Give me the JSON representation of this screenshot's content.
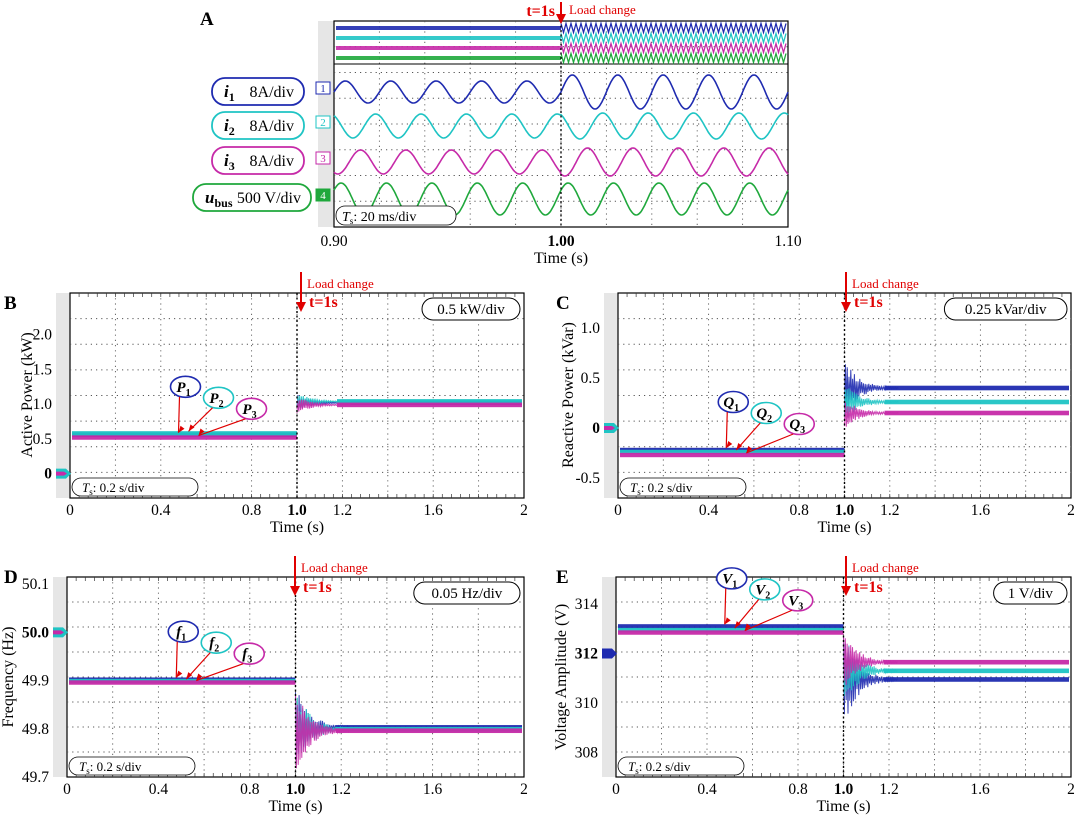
{
  "colors": {
    "ch1": "#1f2bb0",
    "ch2": "#1fc4c4",
    "ch3": "#c62aa8",
    "ch4": "#1fa83c",
    "grid": "#555555",
    "event": "#e00000",
    "frame_bg": "#e6e6e6"
  },
  "chart_data": [
    {
      "id": "A",
      "type": "line",
      "panel_label": "A",
      "xlabel": "Time (s)",
      "x_ticks": [
        {
          "label": "0.90",
          "bold": false
        },
        {
          "label": "1.00",
          "bold": true
        },
        {
          "label": "1.10",
          "bold": false
        }
      ],
      "xlim": [
        0.9,
        1.1
      ],
      "scale_box": {
        "T": "T",
        "sub": "s",
        "rest": ": 20 ms/div"
      },
      "event": {
        "time": 1.0,
        "t_label": "t=1s",
        "label": "Load change"
      },
      "channel_markers": [
        "1",
        "2",
        "3",
        "4"
      ],
      "series": [
        {
          "name": "i1",
          "sym": "i",
          "sub": "1",
          "scale": "8A/div",
          "color_key": "ch1"
        },
        {
          "name": "i2",
          "sym": "i",
          "sub": "2",
          "scale": "8A/div",
          "color_key": "ch2"
        },
        {
          "name": "i3",
          "sym": "i",
          "sub": "3",
          "scale": "8A/div",
          "color_key": "ch3"
        },
        {
          "name": "ubus",
          "sym": "u",
          "sub": "bus",
          "scale": "500 V/div",
          "color_key": "ch4"
        }
      ]
    },
    {
      "id": "B",
      "type": "line",
      "panel_label": "B",
      "xlabel": "Time (s)",
      "ylabel": "Active Power  (kW)",
      "xlim": [
        0,
        2
      ],
      "ylim": [
        -0.35,
        2.6
      ],
      "x_ticks": [
        {
          "label": "0",
          "value": 0,
          "bold": false
        },
        {
          "label": "0.4",
          "value": 0.4,
          "bold": false
        },
        {
          "label": "0.8",
          "value": 0.8,
          "bold": false
        },
        {
          "label": "1.0",
          "value": 1.0,
          "bold": true
        },
        {
          "label": "1.2",
          "value": 1.2,
          "bold": false
        },
        {
          "label": "1.6",
          "value": 1.6,
          "bold": false
        },
        {
          "label": "2",
          "value": 2,
          "bold": false
        }
      ],
      "y_ticks": [
        {
          "label": "0",
          "value": 0
        },
        {
          "label": "0.5",
          "value": 0.5
        },
        {
          "label": "1.0",
          "value": 1.0
        },
        {
          "label": "1.5",
          "value": 1.5
        },
        {
          "label": "2.0",
          "value": 2.0
        }
      ],
      "bold_y_label": "0",
      "scale_box": "0.5 kW/div",
      "time_box": {
        "T": "T",
        "sub": "s",
        "rest": ": 0.2 s/div"
      },
      "event": {
        "time": 1.0,
        "t_label": "t=1s",
        "label": "Load change"
      },
      "series": [
        {
          "name": "P1",
          "sym": "P",
          "sub": "1",
          "color_key": "ch1",
          "before": 0.56,
          "after": 1.02
        },
        {
          "name": "P2",
          "sym": "P",
          "sub": "2",
          "color_key": "ch2",
          "before": 0.58,
          "after": 1.04
        },
        {
          "name": "P3",
          "sym": "P",
          "sub": "3",
          "color_key": "ch3",
          "before": 0.52,
          "after": 0.99
        }
      ]
    },
    {
      "id": "C",
      "type": "line",
      "panel_label": "C",
      "xlabel": "Time (s)",
      "ylabel": "Reactive Power  (kVar)",
      "xlim": [
        0,
        2
      ],
      "ylim": [
        -0.7,
        1.35
      ],
      "x_ticks": [
        {
          "label": "0",
          "value": 0,
          "bold": false
        },
        {
          "label": "0.4",
          "value": 0.4,
          "bold": false
        },
        {
          "label": "0.8",
          "value": 0.8,
          "bold": false
        },
        {
          "label": "1.0",
          "value": 1.0,
          "bold": true
        },
        {
          "label": "1.2",
          "value": 1.2,
          "bold": false
        },
        {
          "label": "1.6",
          "value": 1.6,
          "bold": false
        },
        {
          "label": "2",
          "value": 2,
          "bold": false
        }
      ],
      "y_ticks": [
        {
          "label": "-0.5",
          "value": -0.5
        },
        {
          "label": "0",
          "value": 0
        },
        {
          "label": "0.5",
          "value": 0.5
        },
        {
          "label": "1.0",
          "value": 1.0
        }
      ],
      "bold_y_label": "0",
      "scale_box": "0.25 kVar/div",
      "time_box": {
        "T": "T",
        "sub": "s",
        "rest": ": 0.2 s/div"
      },
      "event": {
        "time": 1.0,
        "t_label": "t=1s",
        "label": "Load change"
      },
      "series": [
        {
          "name": "Q1",
          "sym": "Q",
          "sub": "1",
          "color_key": "ch1",
          "before": -0.22,
          "after": 0.4
        },
        {
          "name": "Q2",
          "sym": "Q",
          "sub": "2",
          "color_key": "ch2",
          "before": -0.24,
          "after": 0.26
        },
        {
          "name": "Q3",
          "sym": "Q",
          "sub": "3",
          "color_key": "ch3",
          "before": -0.27,
          "after": 0.15
        }
      ]
    },
    {
      "id": "D",
      "type": "line",
      "panel_label": "D",
      "xlabel": "Time (s)",
      "ylabel": "Frequency  (Hz)",
      "xlim": [
        0,
        2
      ],
      "ylim": [
        49.7,
        50.115
      ],
      "x_ticks": [
        {
          "label": "0",
          "value": 0,
          "bold": false
        },
        {
          "label": "0.4",
          "value": 0.4,
          "bold": false
        },
        {
          "label": "0.8",
          "value": 0.8,
          "bold": false
        },
        {
          "label": "1.0",
          "value": 1.0,
          "bold": true
        },
        {
          "label": "1.2",
          "value": 1.2,
          "bold": false
        },
        {
          "label": "1.6",
          "value": 1.6,
          "bold": false
        },
        {
          "label": "2",
          "value": 2,
          "bold": false
        }
      ],
      "y_ticks": [
        {
          "label": "49.7",
          "value": 49.7
        },
        {
          "label": "49.8",
          "value": 49.8
        },
        {
          "label": "49.9",
          "value": 49.9
        },
        {
          "label": "50.0",
          "value": 50.0
        },
        {
          "label": "50.1",
          "value": 50.1
        }
      ],
      "bold_y_label": "50.0",
      "scale_box": "0.05 Hz/div",
      "time_box": {
        "T": "T",
        "sub": "s",
        "rest": ": 0.2 s/div"
      },
      "event": {
        "time": 1.0,
        "t_label": "t=1s",
        "label": "Load change"
      },
      "series": [
        {
          "name": "f1",
          "sym": "f",
          "sub": "1",
          "color_key": "ch1",
          "before": 49.902,
          "after": 49.803
        },
        {
          "name": "f2",
          "sym": "f",
          "sub": "2",
          "color_key": "ch2",
          "before": 49.899,
          "after": 49.799
        },
        {
          "name": "f3",
          "sym": "f",
          "sub": "3",
          "color_key": "ch3",
          "before": 49.896,
          "after": 49.796
        }
      ]
    },
    {
      "id": "E",
      "type": "line",
      "panel_label": "E",
      "xlabel": "Time (s)",
      "ylabel": "Voltage Amplitude (V)",
      "xlim": [
        0,
        2
      ],
      "ylim": [
        307,
        315.1
      ],
      "x_ticks": [
        {
          "label": "0",
          "value": 0,
          "bold": false
        },
        {
          "label": "0.4",
          "value": 0.4,
          "bold": false
        },
        {
          "label": "0.8",
          "value": 0.8,
          "bold": false
        },
        {
          "label": "1.0",
          "value": 1.0,
          "bold": true
        },
        {
          "label": "1.2",
          "value": 1.2,
          "bold": false
        },
        {
          "label": "1.6",
          "value": 1.6,
          "bold": false
        },
        {
          "label": "2",
          "value": 2,
          "bold": false
        }
      ],
      "y_ticks": [
        {
          "label": "308",
          "value": 308
        },
        {
          "label": "310",
          "value": 310
        },
        {
          "label": "312",
          "value": 312
        },
        {
          "label": "314",
          "value": 314
        }
      ],
      "bold_y_label": "312",
      "scale_box": "1 V/div",
      "time_box": {
        "T": "T",
        "sub": "s",
        "rest": ": 0.2 s/div"
      },
      "event": {
        "time": 1.0,
        "t_label": "t=1s",
        "label": "Load change"
      },
      "series": [
        {
          "name": "V1",
          "sym": "V",
          "sub": "1",
          "color_key": "ch1",
          "before": 313.1,
          "after": 310.95
        },
        {
          "name": "V2",
          "sym": "V",
          "sub": "2",
          "color_key": "ch2",
          "before": 312.95,
          "after": 311.3
        },
        {
          "name": "V3",
          "sym": "V",
          "sub": "3",
          "color_key": "ch3",
          "before": 312.85,
          "after": 311.65
        }
      ]
    }
  ]
}
